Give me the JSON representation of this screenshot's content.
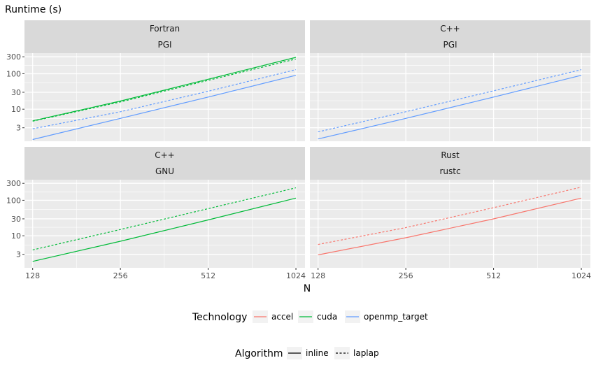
{
  "chart_data": {
    "type": "line",
    "scale": "log-log",
    "ylabel": "Runtime (s)",
    "xlabel": "N",
    "x_ticks": [
      128,
      256,
      512,
      1024
    ],
    "y_ticks": [
      3,
      10,
      30,
      100,
      300
    ],
    "xlim": [
      120,
      1100
    ],
    "ylim": [
      1.25,
      380
    ],
    "grid": true,
    "colors": {
      "accel": "#f8766d",
      "cuda": "#00ba38",
      "openmp_target": "#619cff"
    },
    "panels": [
      {
        "strip_top": "Fortran",
        "strip_bottom": "PGI",
        "series": [
          {
            "technology": "cuda",
            "algorithm": "inline",
            "x": [
              128,
              256,
              512,
              1024
            ],
            "y": [
              4.7,
              17,
              70,
              290
            ]
          },
          {
            "technology": "cuda",
            "algorithm": "laplap",
            "x": [
              128,
              256,
              512,
              1024
            ],
            "y": [
              4.6,
              16,
              65,
              260
            ]
          },
          {
            "technology": "openmp_target",
            "algorithm": "inline",
            "x": [
              128,
              256,
              512,
              1024
            ],
            "y": [
              1.4,
              5.5,
              22,
              90
            ]
          },
          {
            "technology": "openmp_target",
            "algorithm": "laplap",
            "x": [
              128,
              256,
              512,
              1024
            ],
            "y": [
              2.8,
              8.5,
              32,
              130
            ]
          }
        ]
      },
      {
        "strip_top": "C++",
        "strip_bottom": "PGI",
        "series": [
          {
            "technology": "openmp_target",
            "algorithm": "inline",
            "x": [
              128,
              256,
              512,
              1024
            ],
            "y": [
              1.45,
              5.5,
              22,
              90
            ]
          },
          {
            "technology": "openmp_target",
            "algorithm": "laplap",
            "x": [
              128,
              256,
              512,
              1024
            ],
            "y": [
              2.3,
              8.5,
              33,
              130
            ]
          }
        ]
      },
      {
        "strip_top": "C++",
        "strip_bottom": "GNU",
        "series": [
          {
            "technology": "cuda",
            "algorithm": "inline",
            "x": [
              128,
              256,
              512,
              1024
            ],
            "y": [
              1.9,
              7.0,
              28,
              115
            ]
          },
          {
            "technology": "cuda",
            "algorithm": "laplap",
            "x": [
              128,
              256,
              512,
              1024
            ],
            "y": [
              4.0,
              15,
              58,
              225
            ]
          }
        ]
      },
      {
        "strip_top": "Rust",
        "strip_bottom": "rustc",
        "series": [
          {
            "technology": "accel",
            "algorithm": "inline",
            "x": [
              128,
              256,
              512,
              1024
            ],
            "y": [
              2.9,
              8.8,
              30,
              115
            ]
          },
          {
            "technology": "accel",
            "algorithm": "laplap",
            "x": [
              128,
              256,
              512,
              1024
            ],
            "y": [
              5.7,
              17,
              62,
              235
            ]
          }
        ]
      }
    ],
    "legends": [
      {
        "title": "Technology",
        "kind": "color",
        "entries": [
          "accel",
          "cuda",
          "openmp_target"
        ]
      },
      {
        "title": "Algorithm",
        "kind": "linetype",
        "entries": [
          "inline",
          "laplap"
        ]
      }
    ]
  }
}
